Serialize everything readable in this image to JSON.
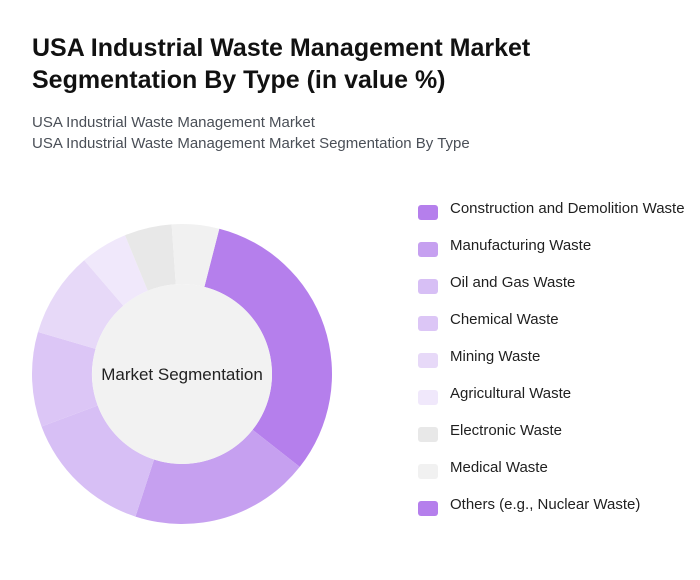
{
  "header": {
    "title": "USA Industrial Waste Management Market Segmentation By Type (in value %)",
    "subtitle_1": "USA Industrial Waste Management Market",
    "subtitle_2": "USA Industrial Waste Management Market Segmentation By Type"
  },
  "chart_data": {
    "type": "pie",
    "center_label": "Market Segmentation",
    "categories": [
      "Construction and Demolition Waste",
      "Manufacturing Waste",
      "Oil and Gas Waste",
      "Chemical Waste",
      "Mining Waste",
      "Agricultural Waste",
      "Electronic Waste",
      "Medical Waste",
      "Others (e.g., Nuclear Waste)"
    ],
    "values": [
      31,
      19,
      14,
      10,
      9,
      5,
      5,
      5,
      0
    ],
    "colors": [
      "#b57fec",
      "#c6a0f0",
      "#d7bff5",
      "#dcc6f6",
      "#e7d9f8",
      "#f0e8fb",
      "#e8e8e8",
      "#f1f1f1",
      "#b57fec"
    ],
    "legend_position": "right"
  }
}
